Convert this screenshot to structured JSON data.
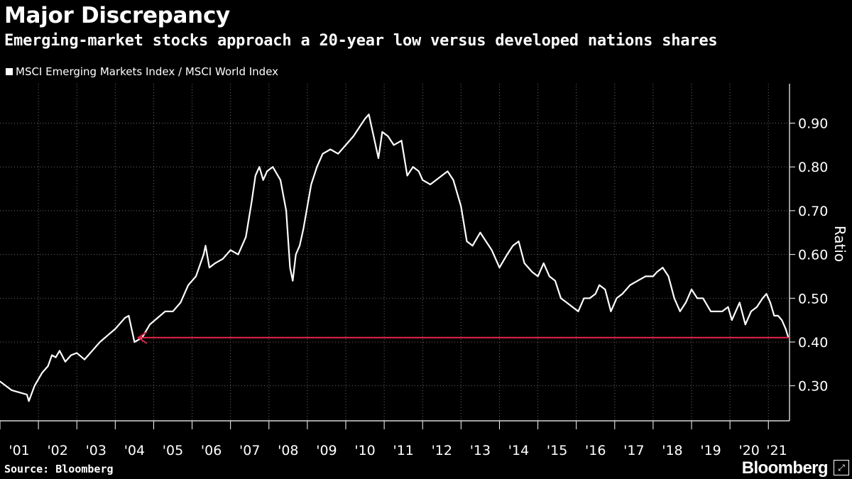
{
  "header": {
    "title": "Major Discrepancy",
    "subtitle": "Emerging-market stocks approach a 20-year low versus developed nations shares"
  },
  "footer": {
    "source": "Source: Bloomberg",
    "brand": "Bloomberg"
  },
  "colors": {
    "background": "#000000",
    "line": "#ffffff",
    "arrow": "#e8254a",
    "grid": "#6b6b6b"
  },
  "icons": {
    "brand_badge": "expand-icon"
  },
  "chart_data": {
    "type": "line",
    "title": "Major Discrepancy",
    "subtitle": "Emerging-market stocks approach a 20-year low versus developed nations shares",
    "xlabel": "",
    "ylabel": "Ratio",
    "ylim": [
      0.22,
      0.99
    ],
    "xlim": [
      2001.0,
      2021.55
    ],
    "y_axis_side": "right",
    "y_ticks": [
      0.3,
      0.4,
      0.5,
      0.6,
      0.7,
      0.8,
      0.9
    ],
    "y_tick_labels": [
      "0.30",
      "0.40",
      "0.50",
      "0.60",
      "0.70",
      "0.80",
      "0.90"
    ],
    "x_tick_labels": [
      "'01",
      "'02",
      "'03",
      "'04",
      "'05",
      "'06",
      "'07",
      "'08",
      "'09",
      "'10",
      "'11",
      "'12",
      "'13",
      "'14",
      "'15",
      "'16",
      "'17",
      "'18",
      "'19",
      "'20",
      "'21"
    ],
    "grid": "vertical dotted",
    "legend_position": "top-left",
    "series": [
      {
        "name": "MSCI Emerging Markets Index / MSCI World Index",
        "x": [
          2001.0,
          2001.15,
          2001.3,
          2001.5,
          2001.7,
          2001.75,
          2001.9,
          2002.1,
          2002.25,
          2002.35,
          2002.45,
          2002.55,
          2002.7,
          2002.85,
          2003.0,
          2003.2,
          2003.4,
          2003.6,
          2003.8,
          2004.0,
          2004.15,
          2004.25,
          2004.35,
          2004.5,
          2004.7,
          2004.9,
          2005.1,
          2005.3,
          2005.5,
          2005.7,
          2005.9,
          2006.1,
          2006.3,
          2006.35,
          2006.45,
          2006.6,
          2006.8,
          2007.0,
          2007.2,
          2007.4,
          2007.55,
          2007.65,
          2007.75,
          2007.85,
          2007.95,
          2008.1,
          2008.3,
          2008.45,
          2008.55,
          2008.62,
          2008.7,
          2008.8,
          2008.9,
          2009.1,
          2009.25,
          2009.4,
          2009.6,
          2009.8,
          2010.0,
          2010.2,
          2010.35,
          2010.5,
          2010.6,
          2010.7,
          2010.85,
          2010.95,
          2011.1,
          2011.25,
          2011.45,
          2011.6,
          2011.75,
          2011.9,
          2012.0,
          2012.2,
          2012.35,
          2012.5,
          2012.65,
          2012.8,
          2013.0,
          2013.15,
          2013.3,
          2013.5,
          2013.65,
          2013.8,
          2014.0,
          2014.2,
          2014.35,
          2014.5,
          2014.65,
          2014.85,
          2015.0,
          2015.15,
          2015.3,
          2015.45,
          2015.6,
          2015.75,
          2015.9,
          2016.05,
          2016.2,
          2016.35,
          2016.5,
          2016.6,
          2016.75,
          2016.9,
          2017.05,
          2017.2,
          2017.4,
          2017.6,
          2017.8,
          2018.0,
          2018.1,
          2018.25,
          2018.4,
          2018.55,
          2018.7,
          2018.85,
          2019.0,
          2019.15,
          2019.3,
          2019.5,
          2019.65,
          2019.8,
          2019.95,
          2020.05,
          2020.15,
          2020.25,
          2020.4,
          2020.55,
          2020.7,
          2020.85,
          2020.95,
          2021.05,
          2021.15,
          2021.25,
          2021.35,
          2021.45,
          2021.52
        ],
        "values": [
          0.31,
          0.3,
          0.29,
          0.285,
          0.28,
          0.265,
          0.3,
          0.33,
          0.345,
          0.37,
          0.365,
          0.38,
          0.355,
          0.37,
          0.375,
          0.36,
          0.38,
          0.4,
          0.415,
          0.43,
          0.445,
          0.455,
          0.46,
          0.4,
          0.41,
          0.44,
          0.455,
          0.47,
          0.47,
          0.49,
          0.53,
          0.55,
          0.6,
          0.62,
          0.57,
          0.58,
          0.59,
          0.61,
          0.6,
          0.64,
          0.72,
          0.78,
          0.8,
          0.77,
          0.79,
          0.8,
          0.77,
          0.7,
          0.57,
          0.54,
          0.6,
          0.62,
          0.66,
          0.76,
          0.8,
          0.83,
          0.84,
          0.83,
          0.85,
          0.87,
          0.89,
          0.91,
          0.92,
          0.88,
          0.82,
          0.88,
          0.87,
          0.85,
          0.86,
          0.78,
          0.8,
          0.79,
          0.77,
          0.76,
          0.77,
          0.78,
          0.79,
          0.77,
          0.71,
          0.63,
          0.62,
          0.65,
          0.63,
          0.61,
          0.57,
          0.6,
          0.62,
          0.63,
          0.58,
          0.56,
          0.55,
          0.58,
          0.55,
          0.54,
          0.5,
          0.49,
          0.48,
          0.47,
          0.5,
          0.5,
          0.51,
          0.53,
          0.52,
          0.47,
          0.5,
          0.51,
          0.53,
          0.54,
          0.55,
          0.55,
          0.56,
          0.57,
          0.55,
          0.5,
          0.47,
          0.49,
          0.52,
          0.5,
          0.5,
          0.47,
          0.47,
          0.47,
          0.48,
          0.45,
          0.47,
          0.49,
          0.44,
          0.47,
          0.48,
          0.5,
          0.51,
          0.49,
          0.46,
          0.46,
          0.45,
          0.43,
          0.41
        ]
      }
    ],
    "annotations": [
      {
        "type": "arrow",
        "direction": "left",
        "y": 0.41,
        "x_from": 2021.55,
        "x_to": 2004.6,
        "color": "#e8254a"
      }
    ]
  }
}
